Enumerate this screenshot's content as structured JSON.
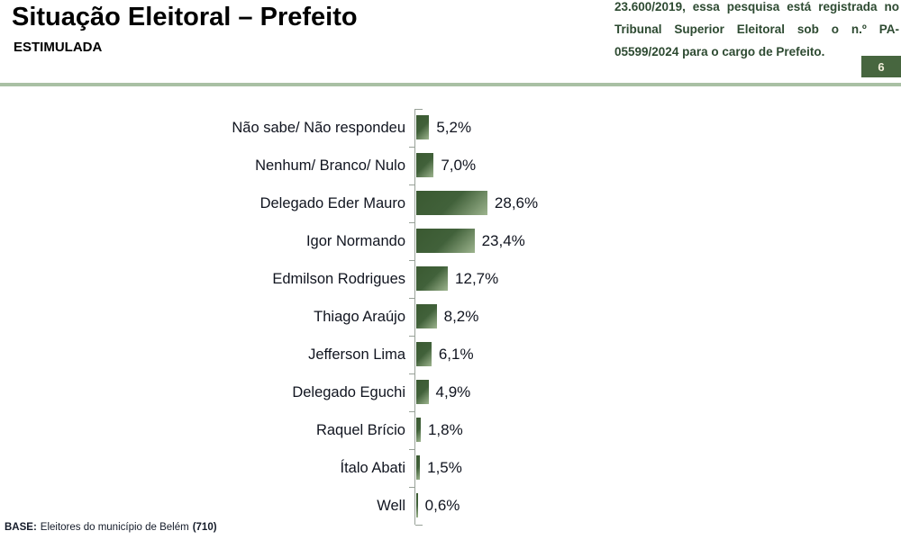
{
  "page": {
    "title": "Situação Eleitoral – Prefeito",
    "subtitle": "ESTIMULADA",
    "registration_note": "23.600/2019, essa pesquisa está registrada no Tribunal Superior Eleitoral sob o n.º PA-05599/2024 para o cargo de Prefeito.",
    "page_number": "6"
  },
  "chart_data": {
    "type": "bar",
    "orientation": "horizontal",
    "title": "Situação Eleitoral – Prefeito",
    "subtitle": "ESTIMULADA",
    "categories": [
      "Não sabe/ Não respondeu",
      "Nenhum/ Branco/ Nulo",
      "Delegado Eder Mauro",
      "Igor Normando",
      "Edmilson Rodrigues",
      "Thiago Araújo",
      "Jefferson Lima",
      "Delegado Eguchi",
      "Raquel Brício",
      "Ítalo Abati",
      "Well"
    ],
    "values": [
      5.2,
      7.0,
      28.6,
      23.4,
      12.7,
      8.2,
      6.1,
      4.9,
      1.8,
      1.5,
      0.6
    ],
    "value_labels": [
      "5,2%",
      "7,0%",
      "28,6%",
      "23,4%",
      "12,7%",
      "8,2%",
      "6,1%",
      "4,9%",
      "1,8%",
      "1,5%",
      "0,6%"
    ],
    "xlim": [
      0,
      30
    ],
    "grid": false,
    "legend": false,
    "value_label_position": "end-of-bar"
  },
  "footer": {
    "base_label": "BASE:",
    "base_text": "Eleitores do município de Belém",
    "base_count": "(710)"
  },
  "colors": {
    "bar_gradient_dark": "#3a5931",
    "bar_gradient_light": "#9db48e",
    "note_green": "#2d4a31",
    "badge_background": "#47663f",
    "badge_text": "#f2eedb",
    "divider_green": "#a9c0a4",
    "axis_gray": "#98a198"
  }
}
